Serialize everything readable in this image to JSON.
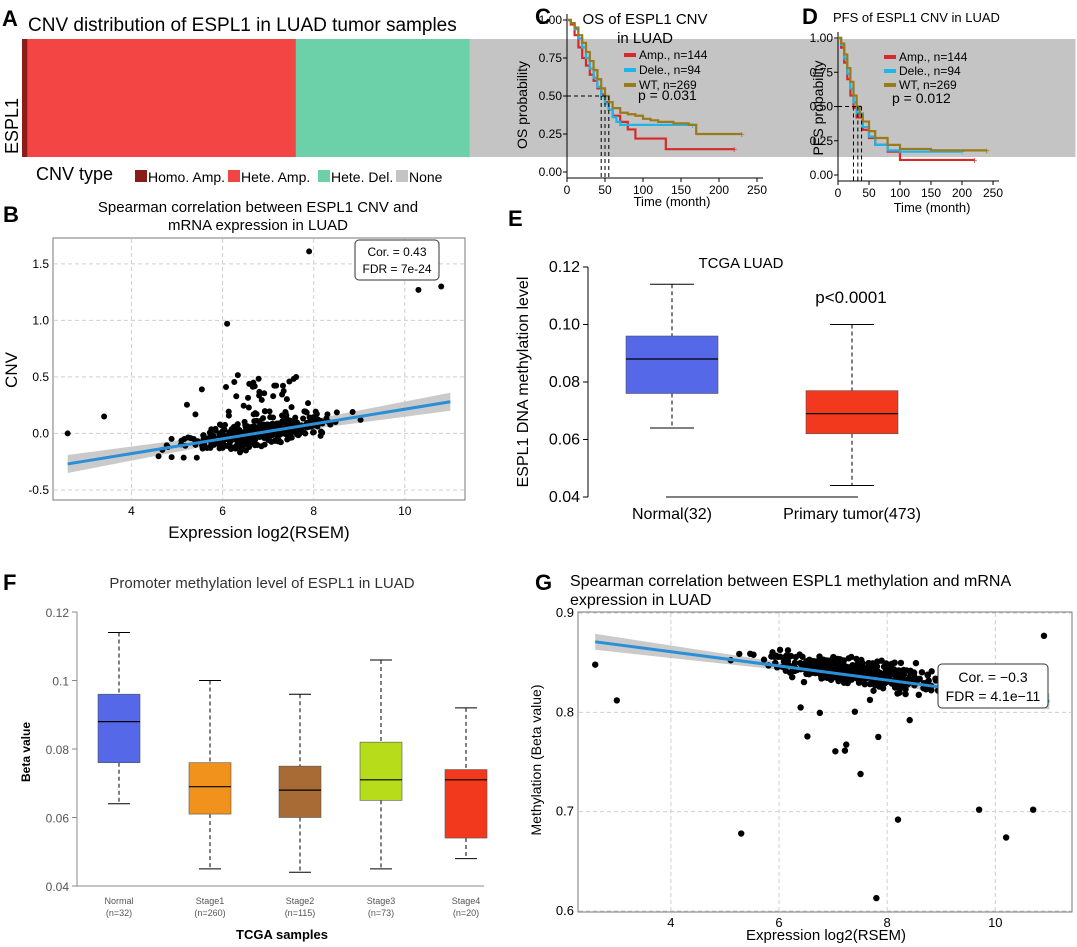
{
  "panels": {
    "A": {
      "letter": "A",
      "chart_data": {
        "type": "bar",
        "title": "CNV distribution of ESPL1 in LUAD tumor samples",
        "gene": "ESPL1",
        "legend_title": "CNV type",
        "categories": [
          "Homo. Amp.",
          "Hete. Amp.",
          "Hete. Del.",
          "None"
        ],
        "fractions": [
          0.005,
          0.255,
          0.165,
          0.575
        ],
        "colors": [
          "#8b1c1c",
          "#f44545",
          "#6cd1a8",
          "#c4c4c4"
        ]
      }
    },
    "B": {
      "letter": "B",
      "chart_data": {
        "type": "scatter",
        "title_lines": [
          "Spearman correlation between ESPL1 CNV and",
          "mRNA expression in LUAD"
        ],
        "xlabel": "Expression log2(RSEM)",
        "ylabel": "CNV",
        "xlim": [
          2.3,
          11.3
        ],
        "ylim": [
          -0.58,
          1.72
        ],
        "xticks": [
          4,
          6,
          8,
          10
        ],
        "yticks": [
          -0.5,
          0.0,
          0.5,
          1.0,
          1.5
        ],
        "ytick_labels": [
          "-0.5",
          "0.0",
          "0.5",
          "1.0",
          "1.5"
        ],
        "fit": {
          "x": [
            2.6,
            11.0
          ],
          "y": [
            -0.27,
            0.28
          ]
        },
        "stats": [
          "Cor. = 0.43",
          "FDR = 7e-24"
        ]
      }
    },
    "C": {
      "letter": "C",
      "chart_data": {
        "type": "line",
        "title_lines": [
          "OS of ESPL1 CNV",
          "in LUAD"
        ],
        "xlabel": "Time (month)",
        "ylabel": "OS probability",
        "xlim": [
          0,
          250
        ],
        "ylim": [
          0,
          1
        ],
        "xticks": [
          0,
          50,
          100,
          150,
          200,
          250
        ],
        "yticks": [
          0,
          0.25,
          0.5,
          0.75,
          1.0
        ],
        "ytick_labels": [
          "0.00",
          "0.25",
          "0.50",
          "0.75",
          "1.00"
        ],
        "series": [
          {
            "name": "Amp., n=144",
            "color": "#d62a2a",
            "x": [
              0,
              5,
              10,
              15,
              20,
              25,
              30,
              35,
              40,
              45,
              50,
              55,
              60,
              70,
              80,
              90,
              130,
              220
            ],
            "y": [
              1.0,
              0.97,
              0.9,
              0.82,
              0.75,
              0.7,
              0.64,
              0.6,
              0.55,
              0.51,
              0.46,
              0.41,
              0.37,
              0.33,
              0.28,
              0.22,
              0.15,
              0.15
            ]
          },
          {
            "name": "Dele., n=94",
            "color": "#1fb5e8",
            "x": [
              0,
              5,
              10,
              15,
              20,
              25,
              30,
              35,
              40,
              45,
              50,
              55,
              60,
              65,
              70,
              165
            ],
            "y": [
              1.0,
              0.98,
              0.94,
              0.88,
              0.82,
              0.75,
              0.68,
              0.62,
              0.56,
              0.5,
              0.45,
              0.41,
              0.36,
              0.33,
              0.31,
              0.31
            ]
          },
          {
            "name": "WT, n=269",
            "color": "#9a7a1a",
            "x": [
              0,
              5,
              10,
              15,
              20,
              25,
              30,
              35,
              40,
              45,
              50,
              55,
              60,
              70,
              80,
              90,
              100,
              110,
              120,
              140,
              160,
              170,
              230
            ],
            "y": [
              1.0,
              0.98,
              0.95,
              0.9,
              0.85,
              0.79,
              0.73,
              0.67,
              0.61,
              0.55,
              0.5,
              0.46,
              0.42,
              0.39,
              0.38,
              0.37,
              0.35,
              0.34,
              0.33,
              0.32,
              0.31,
              0.25,
              0.25
            ]
          }
        ],
        "median_lines": [
          45,
          50,
          55
        ],
        "pvalue": "p = 0.031"
      }
    },
    "D": {
      "letter": "D",
      "chart_data": {
        "type": "line",
        "title_lines": [
          "PFS of ESPL1 CNV in LUAD"
        ],
        "xlabel": "Time (month)",
        "ylabel": "PFS probability",
        "xlim": [
          0,
          250
        ],
        "ylim": [
          0,
          1
        ],
        "xticks": [
          0,
          50,
          100,
          150,
          200,
          250
        ],
        "yticks": [
          0,
          0.25,
          0.5,
          0.75,
          1.0
        ],
        "ytick_labels": [
          "0.00",
          "0.25",
          "0.50",
          "0.75",
          "1.00"
        ],
        "series": [
          {
            "name": "Amp., n=144",
            "color": "#d62a2a",
            "x": [
              0,
              5,
              10,
              15,
              20,
              25,
              30,
              40,
              50,
              60,
              80,
              100,
              220
            ],
            "y": [
              1.0,
              0.93,
              0.82,
              0.7,
              0.58,
              0.49,
              0.42,
              0.33,
              0.27,
              0.22,
              0.17,
              0.11,
              0.11
            ]
          },
          {
            "name": "Dele., n=94",
            "color": "#1fb5e8",
            "x": [
              0,
              5,
              10,
              15,
              20,
              25,
              30,
              40,
              50,
              60,
              80,
              100,
              200
            ],
            "y": [
              1.0,
              0.95,
              0.85,
              0.74,
              0.63,
              0.53,
              0.45,
              0.35,
              0.28,
              0.22,
              0.18,
              0.17,
              0.17
            ]
          },
          {
            "name": "WT, n=269",
            "color": "#9a7a1a",
            "x": [
              0,
              5,
              10,
              15,
              20,
              25,
              30,
              35,
              40,
              50,
              60,
              80,
              100,
              150,
              240
            ],
            "y": [
              1.0,
              0.96,
              0.88,
              0.78,
              0.68,
              0.58,
              0.5,
              0.44,
              0.39,
              0.32,
              0.27,
              0.22,
              0.19,
              0.18,
              0.18
            ]
          }
        ],
        "median_lines": [
          25,
          32,
          38
        ],
        "pvalue": "p = 0.012"
      }
    },
    "E": {
      "letter": "E",
      "chart_data": {
        "type": "box",
        "title": "TCGA LUAD",
        "ylabel": "ESPL1 DNA methylation level",
        "ylim": [
          0.04,
          0.12
        ],
        "yticks": [
          0.04,
          0.06,
          0.08,
          0.1,
          0.12
        ],
        "ytick_labels": [
          "0.04",
          "0.06",
          "0.08",
          "0.10",
          "0.12"
        ],
        "categories": [
          "Normal(32)",
          "Primary tumor(473)"
        ],
        "boxes": [
          {
            "min": 0.064,
            "q1": 0.076,
            "median": 0.088,
            "q3": 0.096,
            "max": 0.114,
            "color": "#5468e8"
          },
          {
            "min": 0.044,
            "q1": 0.062,
            "median": 0.069,
            "q3": 0.077,
            "max": 0.1,
            "color": "#f2381d"
          }
        ],
        "annotation": "p<0.0001"
      }
    },
    "F": {
      "letter": "F",
      "chart_data": {
        "type": "box",
        "title": "Promoter methylation level of ESPL1 in LUAD",
        "xlabel": "TCGA samples",
        "ylabel": "Beta value",
        "ylim": [
          0.04,
          0.12
        ],
        "yticks": [
          0.04,
          0.06,
          0.08,
          0.1,
          0.12
        ],
        "ytick_labels": [
          "0.04",
          "0.06",
          "0.08",
          "0.1",
          "0.12"
        ],
        "categories": [
          "Normal",
          "Stage1",
          "Stage2",
          "Stage3",
          "Stage4"
        ],
        "sublabels": [
          "(n=32)",
          "(n=260)",
          "(n=115)",
          "(n=73)",
          "(n=20)"
        ],
        "boxes": [
          {
            "min": 0.064,
            "q1": 0.076,
            "median": 0.088,
            "q3": 0.096,
            "max": 0.114,
            "color": "#5468e8"
          },
          {
            "min": 0.045,
            "q1": 0.061,
            "median": 0.069,
            "q3": 0.076,
            "max": 0.1,
            "color": "#f0921c"
          },
          {
            "min": 0.044,
            "q1": 0.06,
            "median": 0.068,
            "q3": 0.075,
            "max": 0.096,
            "color": "#a86b35"
          },
          {
            "min": 0.045,
            "q1": 0.065,
            "median": 0.071,
            "q3": 0.082,
            "max": 0.106,
            "color": "#b7dd1a"
          },
          {
            "min": 0.048,
            "q1": 0.054,
            "median": 0.071,
            "q3": 0.074,
            "max": 0.092,
            "color": "#f2381d"
          }
        ]
      }
    },
    "G": {
      "letter": "G",
      "chart_data": {
        "type": "scatter",
        "title_lines": [
          "Spearman correlation between ESPL1 methylation and mRNA",
          "expression in LUAD"
        ],
        "xlabel": "Expression log2(RSEM)",
        "ylabel": "Methylation (Beta value)",
        "xlim": [
          2.3,
          11.4
        ],
        "ylim": [
          0.6,
          0.9
        ],
        "xticks": [
          4,
          6,
          8,
          10
        ],
        "yticks": [
          0.6,
          0.7,
          0.8,
          0.9
        ],
        "ytick_labels": [
          "0.6",
          "0.7",
          "0.8",
          "0.9"
        ],
        "fit": {
          "x": [
            2.6,
            11.0
          ],
          "y": [
            0.871,
            0.811
          ]
        },
        "stats": [
          "Cor. = −0.3",
          "FDR = 4.1e−11"
        ]
      }
    }
  }
}
